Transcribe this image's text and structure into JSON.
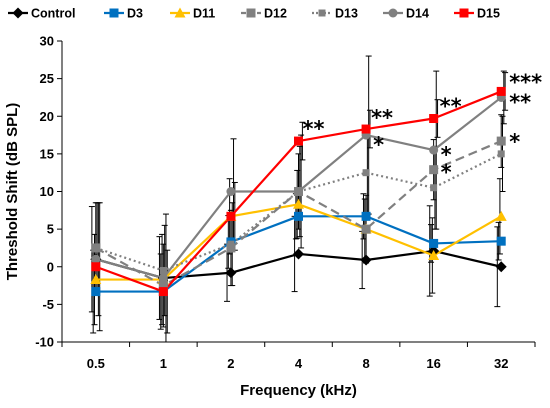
{
  "chart_data": {
    "type": "line",
    "xlabel": "Frequency (kHz)",
    "ylabel": "Threshold Shift (dB SPL)",
    "categories": [
      "0.5",
      "1",
      "2",
      "4",
      "8",
      "16",
      "32"
    ],
    "ylim": [
      -10,
      30
    ],
    "yticks": [
      -10,
      -5,
      0,
      5,
      10,
      15,
      20,
      25,
      30
    ],
    "grid": false,
    "legend_position": "top",
    "series": [
      {
        "name": "Control",
        "color": "#000000",
        "dash": "solid",
        "marker": "diamond",
        "values": [
          1.0,
          -1.5,
          -0.8,
          1.7,
          0.9,
          2.1,
          0.0
        ],
        "error": [
          7.0,
          5.5,
          3.8,
          5.0,
          3.8,
          6.0,
          5.3
        ]
      },
      {
        "name": "D3",
        "color": "#0070C0",
        "dash": "solid",
        "marker": "square",
        "values": [
          -3.3,
          -3.3,
          3.3,
          6.7,
          6.7,
          3.1,
          3.4
        ],
        "error": [
          5.5,
          5.0,
          3.5,
          3.0,
          3.0,
          2.5,
          2.5
        ]
      },
      {
        "name": "D11",
        "color": "#FFC000",
        "dash": "solid",
        "marker": "triangle",
        "values": [
          -1.7,
          -1.7,
          6.7,
          8.3,
          5.0,
          1.5,
          6.7
        ],
        "error": [
          6.0,
          6.0,
          5.0,
          4.5,
          4.0,
          5.0,
          5.0
        ]
      },
      {
        "name": "D12",
        "color": "#808080",
        "dash": "dashed",
        "marker": "square",
        "values": [
          2.5,
          -2.5,
          2.5,
          10.0,
          5.0,
          12.9,
          16.7
        ],
        "error": [
          6.0,
          5.5,
          5.0,
          5.0,
          4.5,
          4.0,
          3.5
        ]
      },
      {
        "name": "D13",
        "color": "#808080",
        "dash": "dotted",
        "marker": "square-small",
        "values": [
          2.5,
          -0.5,
          3.0,
          10.0,
          12.5,
          10.5,
          15.0
        ],
        "error": [
          6.0,
          6.0,
          5.5,
          6.0,
          6.0,
          5.5,
          5.0
        ]
      },
      {
        "name": "D14",
        "color": "#808080",
        "dash": "solid",
        "marker": "circle",
        "values": [
          1.0,
          -1.5,
          10.0,
          10.0,
          17.5,
          15.5,
          22.5
        ],
        "error": [
          7.5,
          8.5,
          7.0,
          7.5,
          10.5,
          10.5,
          3.5
        ]
      },
      {
        "name": "D15",
        "color": "#FF0000",
        "dash": "solid",
        "marker": "square",
        "values": [
          0.0,
          -3.3,
          6.7,
          16.7,
          18.3,
          19.7,
          23.3
        ],
        "error": [
          8.5,
          5.5,
          4.5,
          2.5,
          2.5,
          2.5,
          2.5
        ]
      }
    ],
    "annotations": [
      {
        "x": "4",
        "y": 16.7,
        "text": "**"
      },
      {
        "x": "8",
        "y": 18.3,
        "text": "**"
      },
      {
        "x": "8",
        "y": 16.7,
        "text": "*"
      },
      {
        "x": "16",
        "y": 19.7,
        "text": "**"
      },
      {
        "x": "16",
        "y": 15.5,
        "text": "*"
      },
      {
        "x": "16",
        "y": 12.9,
        "text": "*"
      },
      {
        "x": "32",
        "y": 23.3,
        "text": "***"
      },
      {
        "x": "32",
        "y": 22.5,
        "text": "**"
      },
      {
        "x": "32",
        "y": 16.7,
        "text": "*"
      }
    ]
  }
}
